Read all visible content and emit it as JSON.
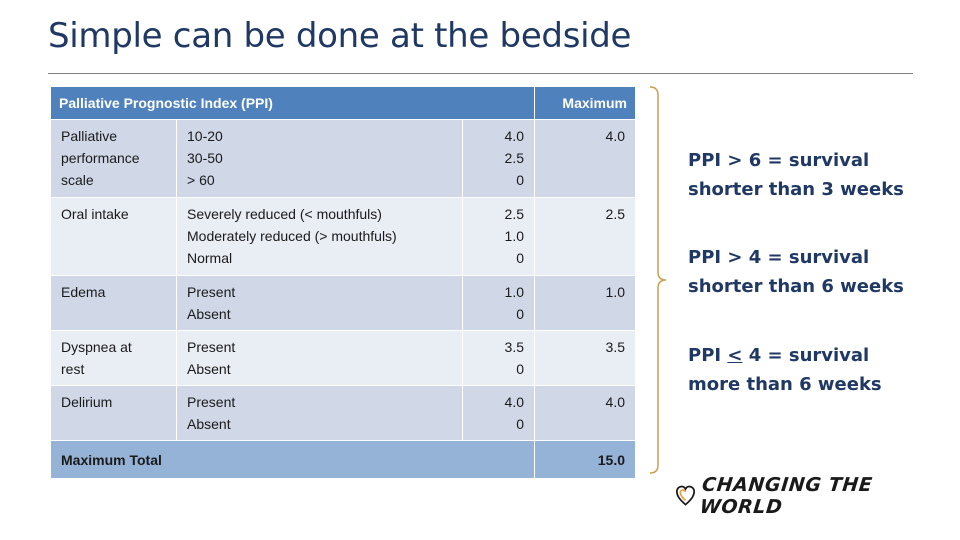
{
  "title": "Simple can be done at the bedside",
  "table": {
    "header": {
      "index": "Palliative Prognostic Index (PPI)",
      "maximum": "Maximum"
    },
    "rows": [
      {
        "parameter": [
          "Palliative",
          "performance",
          "scale"
        ],
        "options": [
          "10-20",
          "30-50",
          "> 60"
        ],
        "scores": [
          "4.0",
          "2.5",
          "0"
        ],
        "maximum": "4.0"
      },
      {
        "parameter": [
          "Oral intake"
        ],
        "options": [
          "Severely reduced (< mouthfuls)",
          "Moderately reduced (> mouthfuls)",
          "Normal"
        ],
        "scores": [
          "2.5",
          "1.0",
          "0"
        ],
        "maximum": "2.5"
      },
      {
        "parameter": [
          "Edema"
        ],
        "options": [
          "Present",
          "Absent"
        ],
        "scores": [
          "1.0",
          "0"
        ],
        "maximum": "1.0"
      },
      {
        "parameter": [
          "Dyspnea at",
          "rest"
        ],
        "options": [
          "Present",
          "Absent"
        ],
        "scores": [
          "3.5",
          "0"
        ],
        "maximum": "3.5"
      },
      {
        "parameter": [
          "Delirium"
        ],
        "options": [
          "Present",
          "Absent"
        ],
        "scores": [
          "4.0",
          "0"
        ],
        "maximum": "4.0"
      }
    ],
    "total": {
      "label": "Maximum Total",
      "value": "15.0"
    }
  },
  "notes": [
    {
      "prefix": "PPI ",
      "operator": ">",
      "line1_rest": " 6 = survival",
      "line2": "shorter than 3 weeks"
    },
    {
      "prefix": "PPI ",
      "operator": ">",
      "line1_rest": " 4 = survival",
      "line2": "shorter than 6 weeks"
    },
    {
      "prefix": "PPI ",
      "operator": "<",
      "line1_rest": " 4 = survival",
      "line2": "more than 6 weeks"
    }
  ],
  "logo": {
    "text": "CHANGING THE WORLD",
    "icon": "heart-shield-icon"
  },
  "colors": {
    "title": "#1f3864",
    "header_fill": "#4f81bd",
    "row_fill_1": "#d0d8e8",
    "row_fill_2": "#e9edf4",
    "total_fill": "#95b3d7",
    "bracket": "#c8a050",
    "logo_accent": "#e8a040"
  }
}
